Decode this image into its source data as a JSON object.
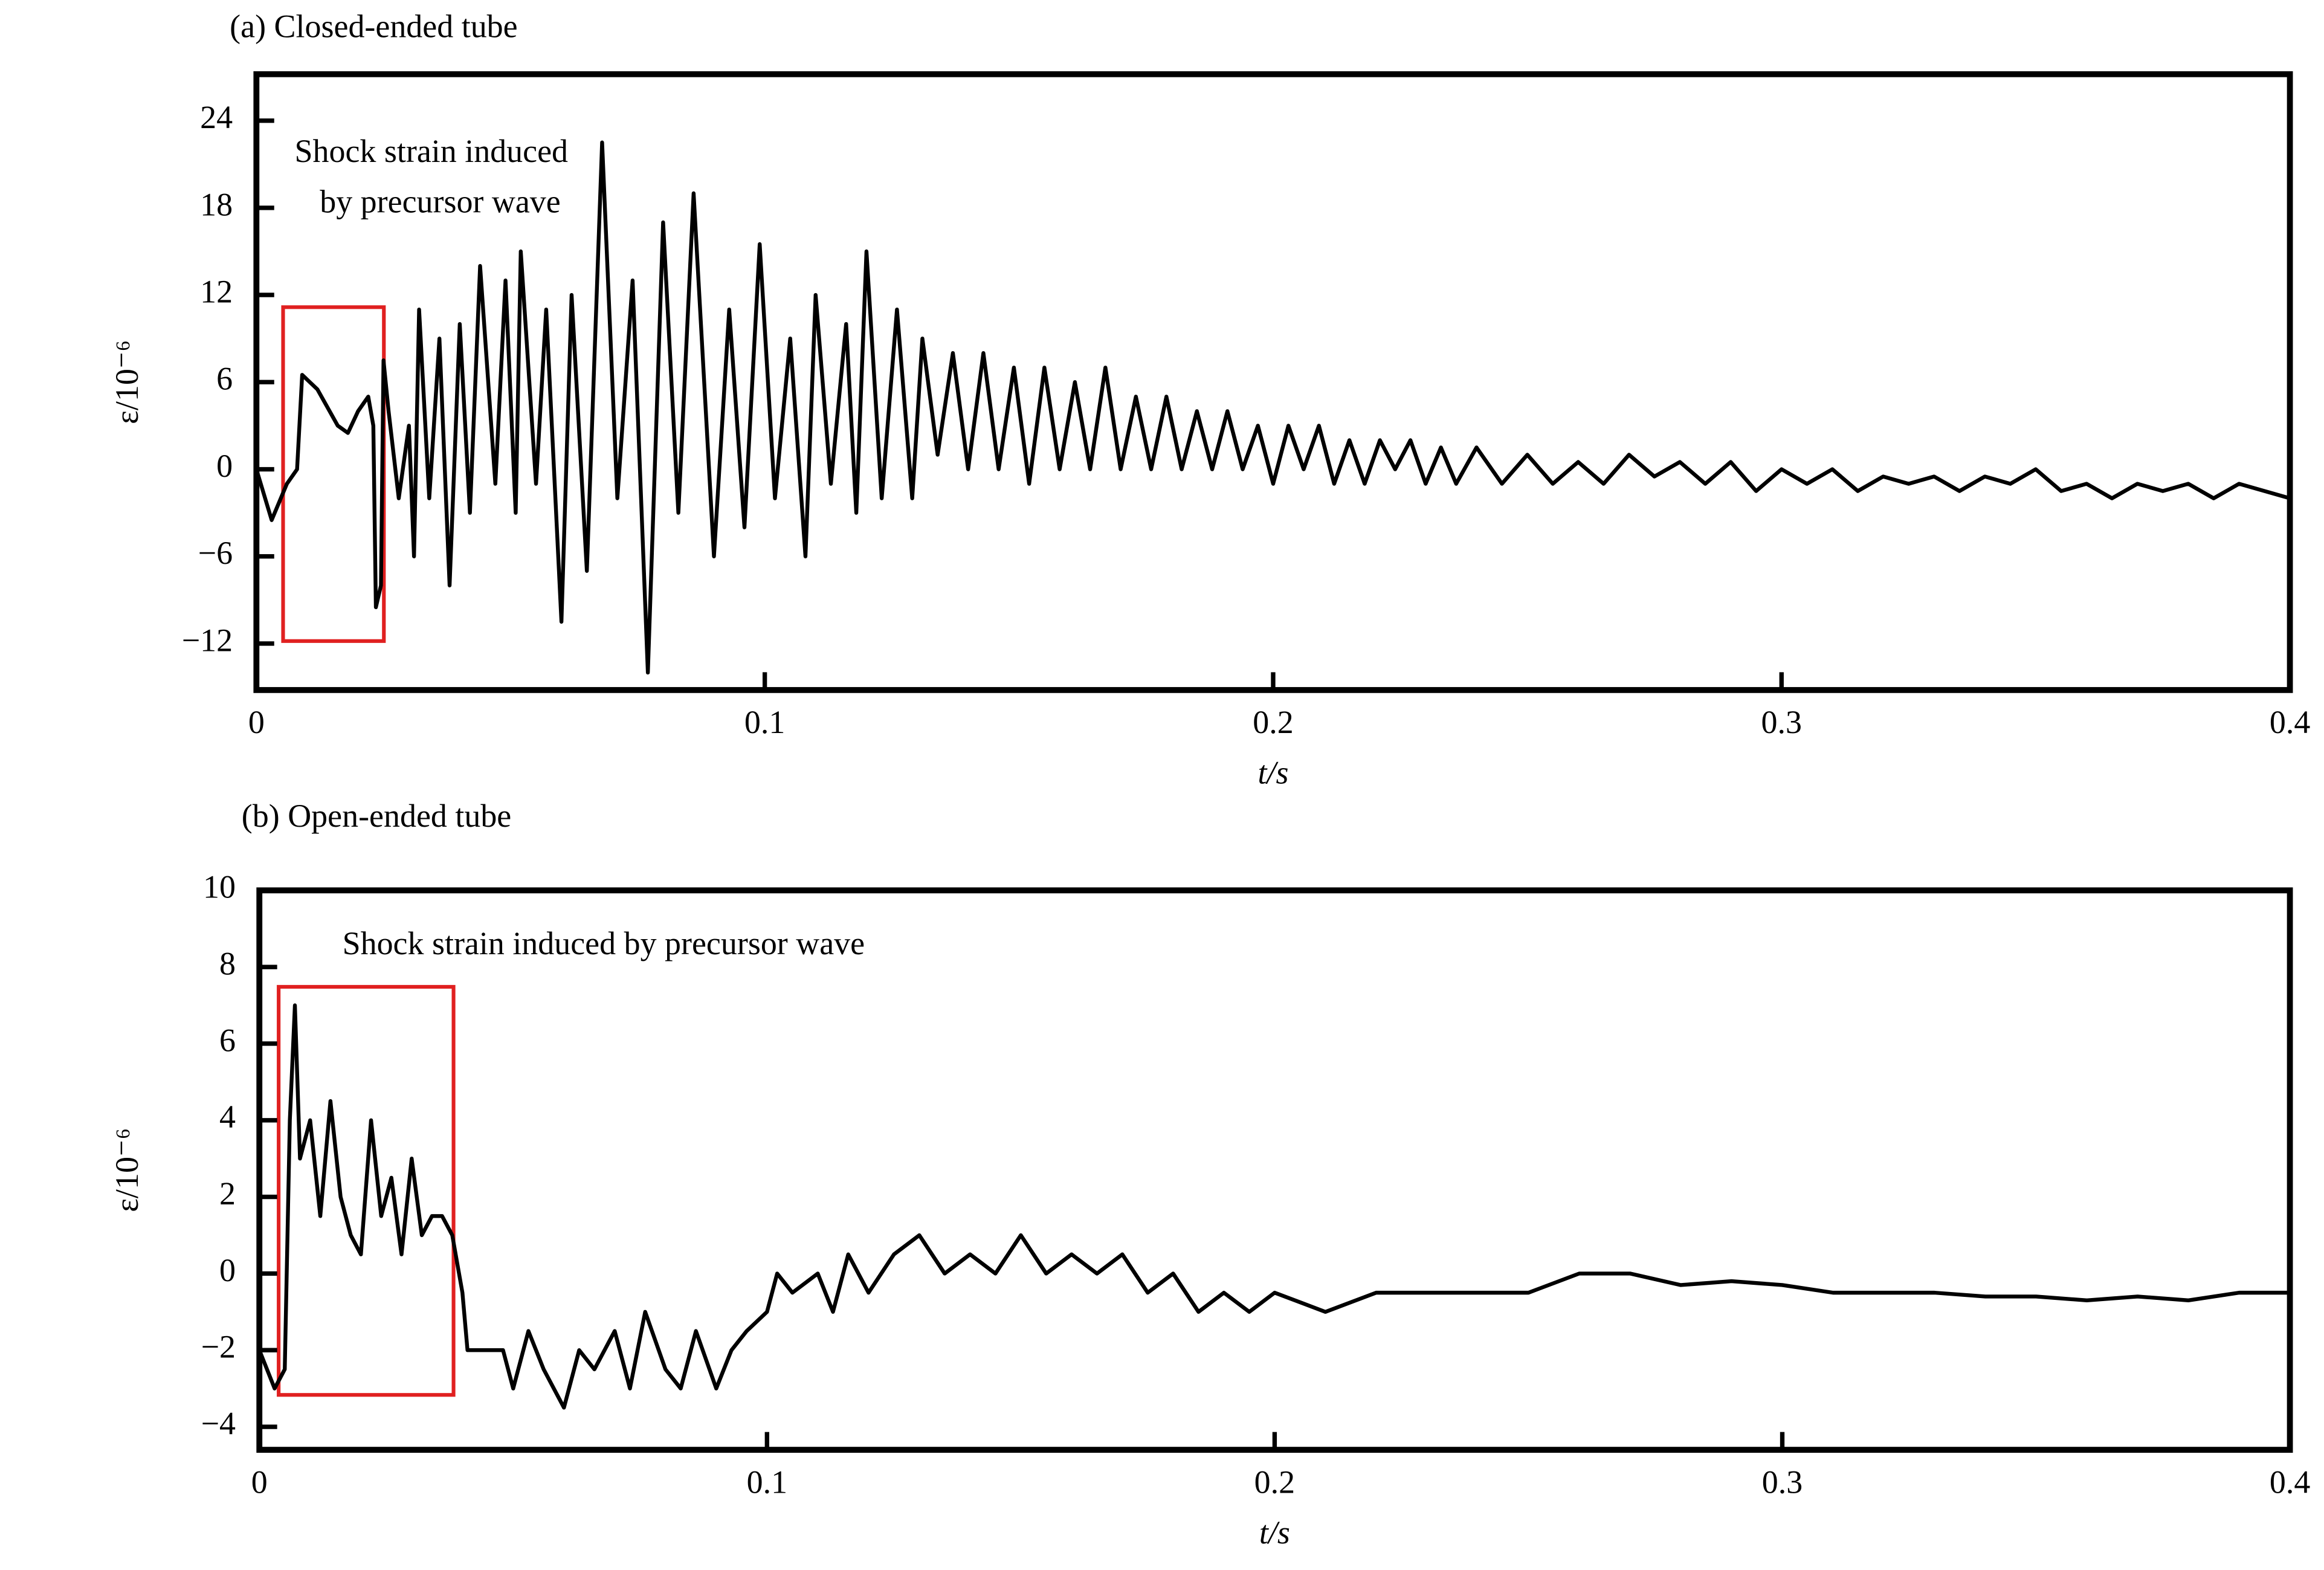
{
  "chart_data": [
    {
      "type": "line",
      "title": "(a)  Closed-ended tube",
      "xlabel": "t/s",
      "ylabel": "ε/10⁻⁶",
      "annotation": [
        "Shock strain induced",
        "by precursor wave"
      ],
      "color": "#000000",
      "xlim": [
        0,
        0.4
      ],
      "xticks": [
        0,
        0.1,
        0.2,
        0.3,
        0.4
      ],
      "ylim": [
        -15.2,
        27.2
      ],
      "yticks": [
        {
          "value": -12,
          "label": "−12"
        },
        {
          "value": -6,
          "label": "−6"
        },
        0,
        6,
        12,
        18,
        24
      ],
      "x": [
        0,
        0.003,
        0.006,
        0.008,
        0.009,
        0.012,
        0.016,
        0.018,
        0.02,
        0.022,
        0.023,
        0.0235,
        0.0245,
        0.025,
        0.026,
        0.028,
        0.03,
        0.031,
        0.032,
        0.034,
        0.036,
        0.038,
        0.04,
        0.042,
        0.044,
        0.047,
        0.049,
        0.051,
        0.052,
        0.055,
        0.057,
        0.06,
        0.062,
        0.065,
        0.068,
        0.071,
        0.074,
        0.077,
        0.08,
        0.083,
        0.086,
        0.09,
        0.093,
        0.096,
        0.099,
        0.102,
        0.105,
        0.108,
        0.11,
        0.113,
        0.116,
        0.118,
        0.12,
        0.123,
        0.126,
        0.129,
        0.131,
        0.134,
        0.137,
        0.14,
        0.143,
        0.146,
        0.149,
        0.152,
        0.155,
        0.158,
        0.161,
        0.164,
        0.167,
        0.17,
        0.173,
        0.176,
        0.179,
        0.182,
        0.185,
        0.188,
        0.191,
        0.194,
        0.197,
        0.2,
        0.203,
        0.206,
        0.209,
        0.212,
        0.215,
        0.218,
        0.221,
        0.224,
        0.227,
        0.23,
        0.233,
        0.236,
        0.24,
        0.245,
        0.25,
        0.255,
        0.26,
        0.265,
        0.27,
        0.275,
        0.28,
        0.285,
        0.29,
        0.295,
        0.3,
        0.305,
        0.31,
        0.315,
        0.32,
        0.325,
        0.33,
        0.335,
        0.34,
        0.345,
        0.35,
        0.355,
        0.36,
        0.365,
        0.37,
        0.375,
        0.38,
        0.385,
        0.39,
        0.395,
        0.4
      ],
      "values": [
        0,
        -3.5,
        -1,
        0,
        6.5,
        5.5,
        3,
        2.5,
        4,
        5,
        3,
        -9.5,
        -8,
        7.5,
        4,
        -2,
        3,
        -6,
        11,
        -2,
        9,
        -8,
        10,
        -3,
        14,
        -1,
        13,
        -3,
        15,
        -1,
        11,
        -10.5,
        12,
        -7,
        22.5,
        -2,
        13,
        -14,
        17,
        -3,
        19,
        -6,
        11,
        -4,
        15.5,
        -2,
        9,
        -6,
        12,
        -1,
        10,
        -3,
        15,
        -2,
        11,
        -2,
        9,
        1,
        8,
        0,
        8,
        0,
        7,
        -1,
        7,
        0,
        6,
        0,
        7,
        0,
        5,
        0,
        5,
        0,
        4,
        0,
        4,
        0,
        3,
        -1,
        3,
        0,
        3,
        -1,
        2,
        -1,
        2,
        0,
        2,
        -1,
        1.5,
        -1,
        1.5,
        -1,
        1,
        -1,
        0.5,
        -1,
        1,
        -0.5,
        0.5,
        -1,
        0.5,
        -1.5,
        0,
        -1,
        0,
        -1.5,
        -0.5,
        -1,
        -0.5,
        -1.5,
        -0.5,
        -1,
        0,
        -1.5,
        -1,
        -2,
        -1,
        -1.5,
        -1,
        -2,
        -1,
        -1.5,
        -2
      ]
    },
    {
      "type": "line",
      "title": "(b) Open-ended tube",
      "xlabel": "t/s",
      "ylabel": "ε/10⁻⁶",
      "annotation": [
        "Shock strain induced by precursor wave"
      ],
      "color": "#000000",
      "xlim": [
        0,
        0.4
      ],
      "xticks": [
        0,
        0.1,
        0.2,
        0.3,
        0.4
      ],
      "ylim": [
        -4.6,
        10
      ],
      "yticks": [
        {
          "value": -4,
          "label": "−4"
        },
        {
          "value": -2,
          "label": "−2"
        },
        0,
        2,
        4,
        6,
        8,
        10
      ],
      "x": [
        0,
        0.003,
        0.005,
        0.006,
        0.007,
        0.008,
        0.01,
        0.012,
        0.014,
        0.016,
        0.018,
        0.02,
        0.022,
        0.024,
        0.026,
        0.028,
        0.03,
        0.032,
        0.034,
        0.036,
        0.038,
        0.04,
        0.041,
        0.045,
        0.048,
        0.05,
        0.053,
        0.056,
        0.06,
        0.063,
        0.066,
        0.07,
        0.073,
        0.076,
        0.08,
        0.083,
        0.086,
        0.09,
        0.093,
        0.096,
        0.1,
        0.102,
        0.105,
        0.11,
        0.113,
        0.116,
        0.12,
        0.125,
        0.13,
        0.135,
        0.14,
        0.145,
        0.15,
        0.155,
        0.16,
        0.165,
        0.17,
        0.175,
        0.18,
        0.185,
        0.19,
        0.195,
        0.2,
        0.21,
        0.22,
        0.23,
        0.24,
        0.25,
        0.26,
        0.27,
        0.28,
        0.29,
        0.3,
        0.31,
        0.32,
        0.33,
        0.34,
        0.35,
        0.36,
        0.37,
        0.38,
        0.39,
        0.4
      ],
      "values": [
        -2,
        -3,
        -2.5,
        4,
        7,
        3,
        4,
        1.5,
        4.5,
        2,
        1,
        0.5,
        4,
        1.5,
        2.5,
        0.5,
        3,
        1,
        1.5,
        1.5,
        1,
        -0.5,
        -2,
        -2,
        -2,
        -3,
        -1.5,
        -2.5,
        -3.5,
        -2,
        -2.5,
        -1.5,
        -3,
        -1,
        -2.5,
        -3,
        -1.5,
        -3,
        -2,
        -1.5,
        -1,
        0,
        -0.5,
        0,
        -1,
        0.5,
        -0.5,
        0.5,
        1,
        0,
        0.5,
        0,
        1,
        0,
        0.5,
        0,
        0.5,
        -0.5,
        0,
        -1,
        -0.5,
        -1,
        -0.5,
        -1,
        -0.5,
        -0.5,
        -0.5,
        -0.5,
        0,
        0,
        -0.3,
        -0.2,
        -0.3,
        -0.5,
        -0.5,
        -0.5,
        -0.6,
        -0.6,
        -0.7,
        -0.6,
        -0.7,
        -0.5,
        -0.5
      ]
    }
  ]
}
